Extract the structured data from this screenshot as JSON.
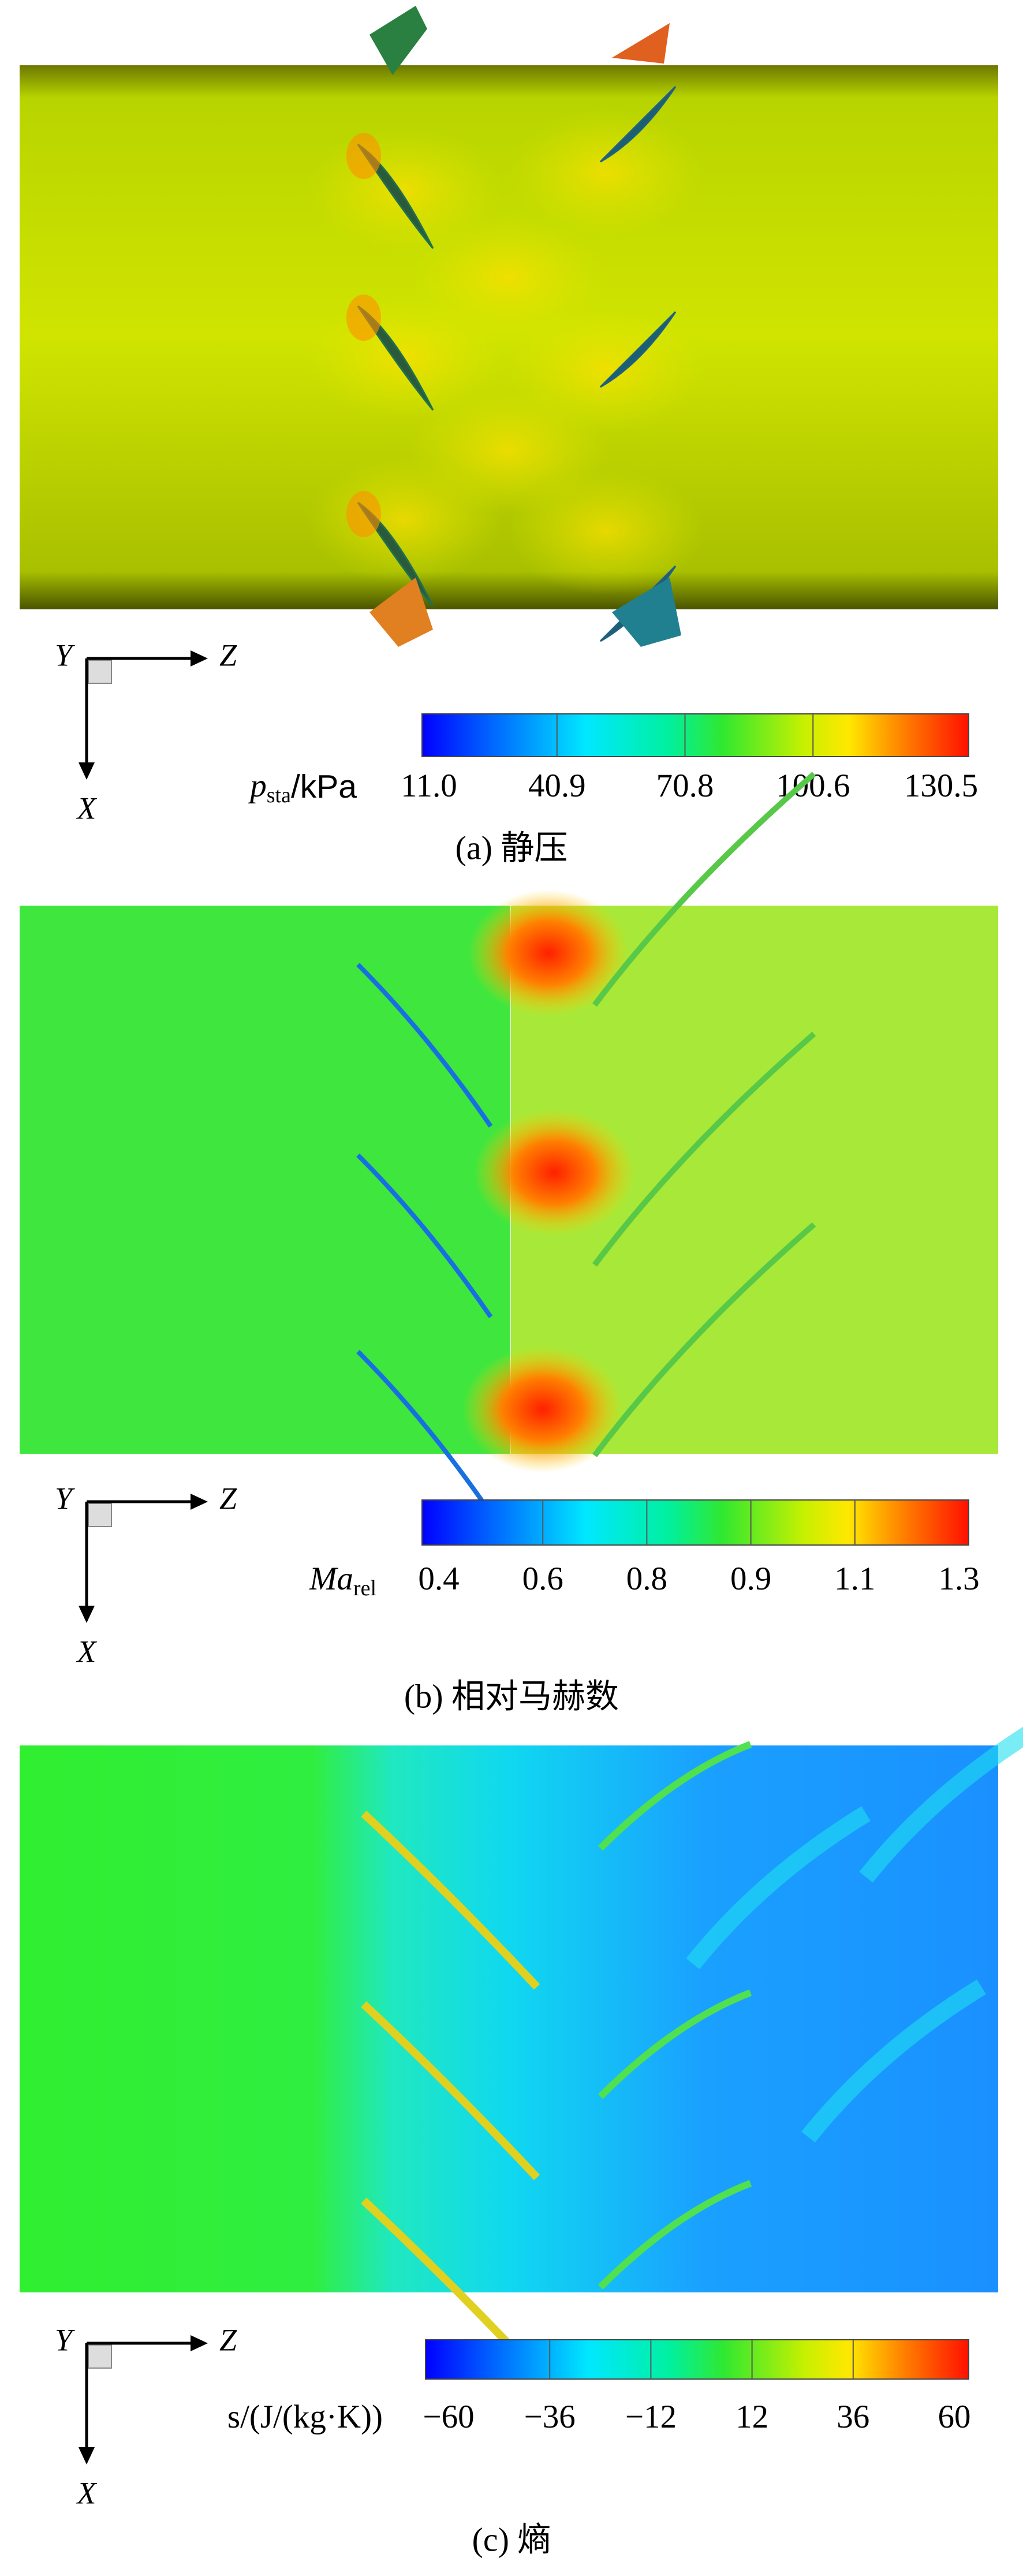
{
  "panels": [
    {
      "axes": {
        "y": "Y",
        "z": "Z",
        "x": "X"
      },
      "colorbar": {
        "symbol": "p",
        "subscript": "sta",
        "unit": "/kPa",
        "ticks": [
          "11.0",
          "40.9",
          "70.8",
          "100.6",
          "130.5"
        ]
      },
      "caption": "(a) 静压"
    },
    {
      "axes": {
        "y": "Y",
        "z": "Z",
        "x": "X"
      },
      "colorbar": {
        "symbol": "Ma",
        "subscript": "rel",
        "ticks": [
          "0.4",
          "0.6",
          "0.8",
          "0.9",
          "1.1",
          "1.3"
        ]
      },
      "caption": "(b) 相对马赫数"
    },
    {
      "axes": {
        "y": "Y",
        "z": "Z",
        "x": "X"
      },
      "colorbar": {
        "label": "s/(J/(kg·K))",
        "ticks": [
          "−60",
          "−36",
          "−12",
          "12",
          "36",
          "60"
        ]
      },
      "caption": "(c) 熵"
    }
  ]
}
